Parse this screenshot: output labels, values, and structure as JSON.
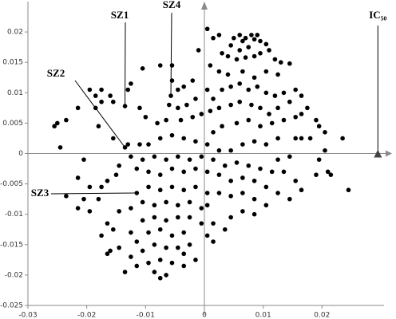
{
  "chart_data": {
    "type": "scatter",
    "color": "#000000",
    "xlim": [
      -0.03,
      0.03
    ],
    "ylim": [
      -0.025,
      0.025
    ],
    "xticks": [
      -0.03,
      -0.02,
      -0.01,
      0,
      0.01,
      0.02
    ],
    "yticks": [
      -0.025,
      -0.02,
      -0.015,
      -0.01,
      -0.005,
      0,
      0.005,
      0.01,
      0.015,
      0.02
    ],
    "annotations": [
      {
        "text": "SZ1",
        "x": -0.0135,
        "y": 0.0078
      },
      {
        "text": "SZ4",
        "x": -0.0057,
        "y": 0.0095
      },
      {
        "text": "SZ2",
        "x": -0.0135,
        "y": 0.001
      },
      {
        "text": "SZ3",
        "x": -0.0115,
        "y": -0.0065
      },
      {
        "text": "IC₅₀",
        "x": 0.0295,
        "y": 0
      }
    ],
    "x": [
      0.005,
      0.006,
      0.0065,
      0.007,
      0.008,
      0.0085,
      0.009,
      0.0095,
      0.0075,
      0.006,
      0.0045,
      0.0105,
      0.011,
      0.0095,
      0.0085,
      0.007,
      0.0055,
      0.004,
      0.003,
      0.012,
      0.013,
      0.0145,
      0.0125,
      0.0005,
      -0.001,
      0.001,
      0.0025,
      0.004,
      0.0065,
      0.0085,
      0.0105,
      0.0025,
      0.0015,
      -0.0055,
      -0.0045,
      -0.0035,
      -0.002,
      -0.006,
      -0.0045,
      -0.003,
      -0.0015,
      0.0005,
      0.0015,
      0.003,
      0.0045,
      0.006,
      0.0075,
      0.009,
      0.0105,
      0.012,
      0.0135,
      0.0155,
      0.0165,
      0.0145,
      0.0125,
      0.011,
      0.0095,
      0.008,
      0.006,
      0.0045,
      0.0025,
      0.001,
      -0.0005,
      -0.002,
      -0.004,
      -0.0065,
      -0.008,
      -0.01,
      -0.011,
      -0.013,
      -0.0125,
      -0.0105,
      -0.0075,
      -0.0055,
      -0.0185,
      -0.0195,
      -0.0175,
      -0.0175,
      -0.016,
      -0.0155,
      -0.0185,
      -0.018,
      -0.0215,
      -0.025,
      -0.0255,
      -0.0235,
      -0.0245,
      -0.0155,
      -0.0135,
      -0.0057,
      0.0175,
      0.019,
      0.0195,
      0.0205,
      0.0165,
      0.0155,
      0.0135,
      0.0115,
      0.0095,
      0.0075,
      0.0055,
      0.003,
      0.0015,
      0.0165,
      0.0155,
      0.018,
      0.0235,
      0.0205,
      0.0195,
      0.021,
      0.019,
      0.0215,
      0.0245,
      0.0125,
      0.0145,
      0.0125,
      0.0105,
      0.0085,
      0.0065,
      0.0045,
      0.0025,
      0.0005,
      -0.0015,
      -0.0035,
      -0.0055,
      -0.0075,
      -0.0095,
      -0.011,
      -0.013,
      -0.0135,
      -0.0125,
      -0.0105,
      -0.0085,
      -0.0065,
      -0.0045,
      -0.0025,
      -0.0005,
      0.0015,
      0.0035,
      0.0055,
      0.0075,
      0.0095,
      0.0115,
      0.0135,
      0.0155,
      0.0165,
      0.0145,
      0.0125,
      0.0105,
      0.0085,
      0.0065,
      0.0045,
      0.0025,
      0.0005,
      -0.0015,
      -0.0035,
      -0.0055,
      -0.0075,
      -0.0095,
      -0.0115,
      -0.0145,
      -0.015,
      -0.0165,
      -0.0205,
      -0.0215,
      -0.0195,
      -0.0175,
      -0.018,
      -0.0205,
      -0.0215,
      -0.0195,
      -0.0235,
      -0.0115,
      -0.0095,
      -0.0075,
      -0.0055,
      -0.0035,
      -0.0015,
      0.0005,
      0.0025,
      0.0045,
      0.0065,
      0.0085,
      0.0105,
      0.0085,
      0.0065,
      0.0045,
      0.0035,
      0.0015,
      -0.0005,
      -0.0025,
      -0.0045,
      -0.0065,
      -0.0085,
      -0.0105,
      -0.0125,
      -0.0145,
      -0.0165,
      -0.0155,
      -0.0175,
      -0.016,
      -0.0165,
      -0.0145,
      -0.0125,
      -0.0105,
      -0.0085,
      -0.0065,
      -0.0045,
      -0.0025,
      -0.0035,
      -0.0055,
      -0.0075,
      -0.0095,
      -0.0115,
      -0.0105,
      -0.0085,
      -0.0065,
      -0.0045,
      -0.0025,
      -0.0015,
      -0.0035,
      -0.0055,
      -0.0075,
      -0.0095,
      -0.0115,
      -0.0085,
      -0.0065,
      -0.0075,
      -0.0125,
      -0.0035,
      0.0005,
      -0.0005,
      0.0015,
      -0.0135,
      0.0005
    ],
    "values": [
      0.019,
      0.0195,
      0.0185,
      0.019,
      0.0195,
      0.0188,
      0.0195,
      0.0185,
      0.0175,
      0.017,
      0.0178,
      0.018,
      0.017,
      0.0165,
      0.016,
      0.0158,
      0.0155,
      0.016,
      0.0165,
      0.0155,
      0.015,
      0.0148,
      0.013,
      0.0205,
      0.017,
      0.0145,
      0.0135,
      0.013,
      0.0135,
      0.0125,
      0.0135,
      0.0195,
      0.019,
      0.012,
      0.0105,
      0.011,
      0.012,
      0.008,
      0.0075,
      0.008,
      0.009,
      0.0105,
      0.009,
      0.0105,
      0.011,
      0.0115,
      0.0105,
      0.011,
      0.01,
      0.0095,
      0.01,
      0.0105,
      0.0095,
      0.0085,
      0.0075,
      0.0065,
      0.0075,
      0.008,
      0.0085,
      0.008,
      0.0075,
      0.007,
      0.0065,
      0.006,
      0.0055,
      0.0055,
      0.005,
      0.006,
      0.0075,
      0.0105,
      0.0115,
      0.014,
      0.0145,
      0.0145,
      0.0095,
      0.0105,
      0.0105,
      0.0085,
      0.0095,
      0.0085,
      0.0075,
      0.0045,
      0.0075,
      0.005,
      0.0045,
      0.0055,
      0.001,
      0.0025,
      0.0078,
      0.0095,
      0.0075,
      0.0055,
      0.0045,
      0.0035,
      0.0065,
      0.006,
      0.0055,
      0.005,
      0.0045,
      0.0055,
      0.005,
      0.0045,
      0.0035,
      0.0025,
      0.0025,
      0.0025,
      0.0025,
      0.0005,
      -0.001,
      -0.003,
      -0.0035,
      -0.0035,
      -0.006,
      0.0025,
      -0.0005,
      -0.001,
      0.0015,
      0.002,
      0.0015,
      0.0005,
      0.0005,
      0.0015,
      0.002,
      0.0025,
      0.003,
      0.0025,
      0.0015,
      0.0015,
      0.0015,
      0.001,
      -0.0005,
      -0.001,
      -0.0005,
      -0.001,
      -0.0005,
      -0.001,
      -0.0005,
      -0.001,
      -0.002,
      -0.0015,
      -0.002,
      -0.0025,
      -0.003,
      -0.003,
      -0.0045,
      -0.006,
      -0.0075,
      -0.0065,
      -0.0055,
      -0.0045,
      -0.004,
      -0.0045,
      -0.0035,
      -0.003,
      -0.0025,
      -0.003,
      -0.0025,
      -0.0035,
      -0.003,
      -0.0025,
      -0.002,
      -0.0035,
      -0.0045,
      -0.001,
      -0.004,
      -0.0055,
      -0.0055,
      -0.0075,
      -0.0075,
      -0.009,
      -0.0095,
      -0.007,
      -0.0065,
      -0.0055,
      -0.006,
      -0.0055,
      -0.006,
      -0.0055,
      -0.0065,
      -0.0065,
      -0.007,
      -0.0065,
      -0.0075,
      -0.0085,
      -0.01,
      -0.0095,
      -0.0105,
      -0.0125,
      -0.0115,
      -0.009,
      -0.008,
      -0.0085,
      -0.008,
      -0.0085,
      -0.008,
      -0.009,
      -0.0095,
      -0.0115,
      -0.0125,
      -0.0135,
      -0.016,
      -0.0165,
      -0.0155,
      -0.013,
      -0.011,
      -0.0105,
      -0.011,
      -0.0105,
      -0.0105,
      -0.013,
      -0.0135,
      -0.0125,
      -0.013,
      -0.0145,
      -0.016,
      -0.015,
      -0.0155,
      -0.0155,
      -0.015,
      -0.0175,
      -0.0185,
      -0.018,
      -0.0175,
      -0.018,
      -0.0185,
      -0.0195,
      -0.02,
      -0.0205,
      -0.017,
      -0.0165,
      -0.0135,
      -0.0115,
      -0.0145,
      -0.0195,
      -0.0085
    ]
  }
}
